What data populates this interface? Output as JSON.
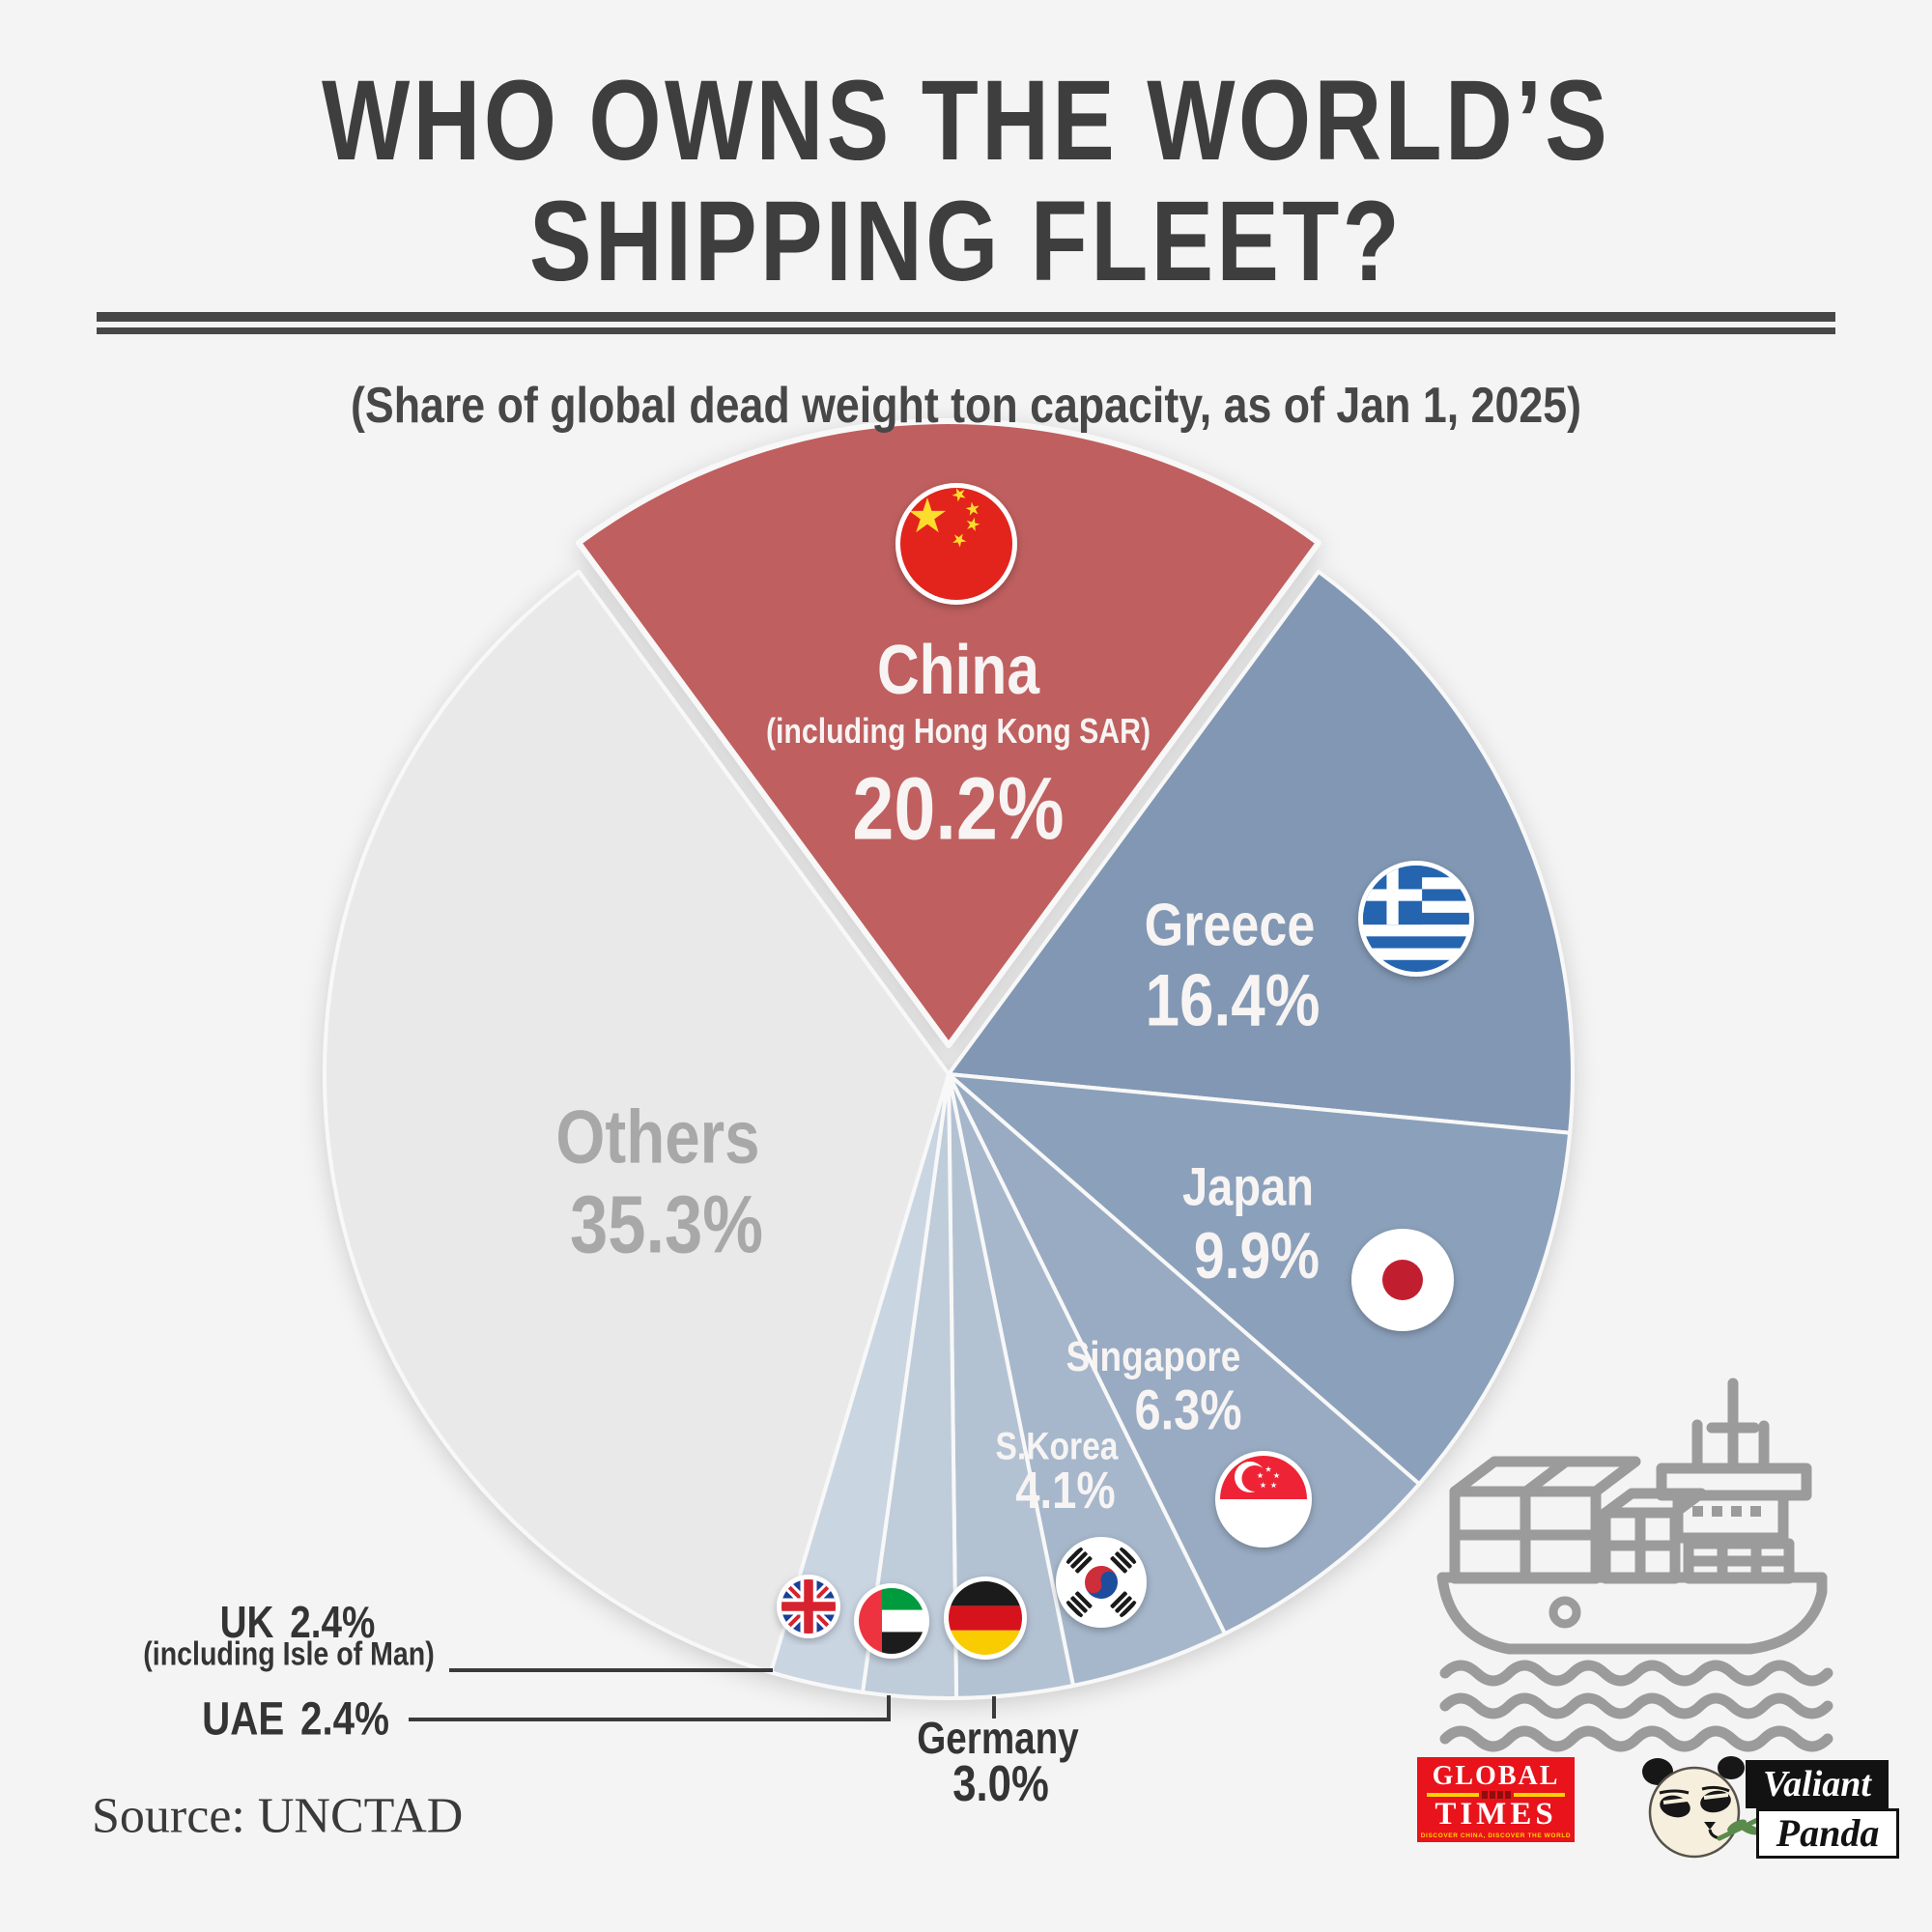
{
  "title": {
    "line1": "WHO OWNS THE WORLD’S",
    "line2": "SHIPPING FLEET?"
  },
  "subtitle": "(Share of global dead weight ton capacity, as of Jan 1, 2025)",
  "source": "Source: UNCTAD",
  "chart_data": {
    "type": "pie",
    "unit": "%",
    "title": "Who owns the world's shipping fleet?",
    "note": "Share of global dead weight ton capacity, as of Jan 1, 2025",
    "start_angle_deg": -36.36,
    "direction": "clockwise",
    "labels_inside": true,
    "slices": [
      {
        "label": "China",
        "sublabel": "(including Hong Kong SAR)",
        "value": 20.2,
        "display": "20.2%",
        "color": "#bf5e5e",
        "flag": "china",
        "exploded": true
      },
      {
        "label": "Greece",
        "value": 16.4,
        "display": "16.4%",
        "color": "#8197b3",
        "flag": "greece"
      },
      {
        "label": "Japan",
        "value": 9.9,
        "display": "9.9%",
        "color": "#8ba0ba",
        "flag": "japan"
      },
      {
        "label": "Singapore",
        "value": 6.3,
        "display": "6.3%",
        "color": "#98abc2",
        "flag": "singapore"
      },
      {
        "label": "S.Korea",
        "value": 4.1,
        "display": "4.1%",
        "color": "#a6b7cb",
        "flag": "south-korea"
      },
      {
        "label": "Germany",
        "value": 3.0,
        "display": "3.0%",
        "color": "#b3c2d3",
        "flag": "germany"
      },
      {
        "label": "UAE",
        "value": 2.4,
        "display": "2.4%",
        "color": "#bfccda",
        "flag": "uae"
      },
      {
        "label": "UK",
        "sublabel": "(including Isle of Man)",
        "value": 2.4,
        "display": "2.4%",
        "color": "#cad5e2",
        "flag": "uk"
      },
      {
        "label": "Others",
        "value": 35.3,
        "display": "35.3%",
        "color": "#e9e9ea",
        "text_color": "#a8a8a8"
      }
    ]
  },
  "colors": {
    "background": "#f4f4f4",
    "title_text": "#3e3e3e",
    "slice_label_light": "#f7f4f3",
    "slice_label_gray": "#a8a8a8",
    "external_label": "#343434",
    "leader_line": "#3a3a3a",
    "ship_line_art": "#9b9b9b",
    "global_times_red": "#e8131b",
    "global_times_yellow": "#ffd400"
  },
  "logos": {
    "global_times": {
      "line1": "GLOBAL",
      "line2": "TIMES",
      "tagline": "DISCOVER CHINA, DISCOVER THE WORLD"
    },
    "valiant_panda": {
      "line1": "Valiant",
      "line2": "Panda"
    }
  },
  "icons": {
    "ship": "cargo-ship-line-art",
    "flags": [
      "china-flag",
      "greece-flag",
      "japan-flag",
      "singapore-flag",
      "south-korea-flag",
      "germany-flag",
      "uae-flag",
      "uk-flag"
    ]
  }
}
